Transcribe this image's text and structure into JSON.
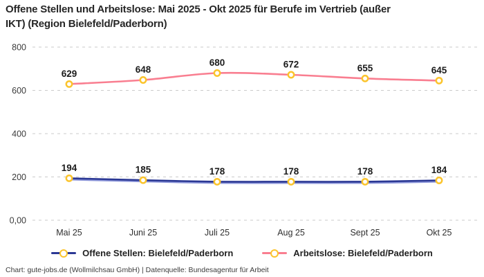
{
  "title": "Offene Stellen und Arbeitslose: Mai 2025 - Okt 2025 für Berufe im Vertrieb (außer\nIKT) (Region Bielefeld/Paderborn)",
  "footer": "Chart: gute-jobs.de (Wollmilchsau GmbH) | Datenquelle: Bundesagentur für Arbeit",
  "colors": {
    "offene_stellen_line": "#2b3894",
    "offene_stellen_shadow": "#8d97da",
    "arbeitslose_line": "#f97e90",
    "marker_ring": "#fbc42c",
    "gridline": "#cbcbcb"
  },
  "chart_data": {
    "type": "line",
    "title": "Offene Stellen und Arbeitslose: Mai 2025 - Okt 2025 für Berufe im Vertrieb (außer IKT) (Region Bielefeld/Paderborn)",
    "categories": [
      "Mai 25",
      "Juni 25",
      "Juli 25",
      "Aug 25",
      "Sept 25",
      "Okt 25"
    ],
    "series": [
      {
        "name": "Offene Stellen: Bielefeld/Paderborn",
        "values": [
          194,
          185,
          178,
          178,
          178,
          184
        ],
        "line_color": "#2b3894",
        "shadow_color": "#8d97da",
        "marker_color": "#fbc42c"
      },
      {
        "name": "Arbeitslose: Bielefeld/Paderborn",
        "values": [
          629,
          648,
          680,
          672,
          655,
          645
        ],
        "line_color": "#f97e90",
        "marker_color": "#fbc42c"
      }
    ],
    "y_ticks": [
      {
        "value": 800,
        "label": "800"
      },
      {
        "value": 600,
        "label": "600"
      },
      {
        "value": 400,
        "label": "400"
      },
      {
        "value": 200,
        "label": "200"
      },
      {
        "value": 0,
        "label": "0,00"
      }
    ],
    "ylim": [
      0,
      800
    ],
    "xlabel": "",
    "ylabel": "",
    "grid": "horizontal-dashed",
    "legend_position": "bottom",
    "show_data_labels": true
  }
}
